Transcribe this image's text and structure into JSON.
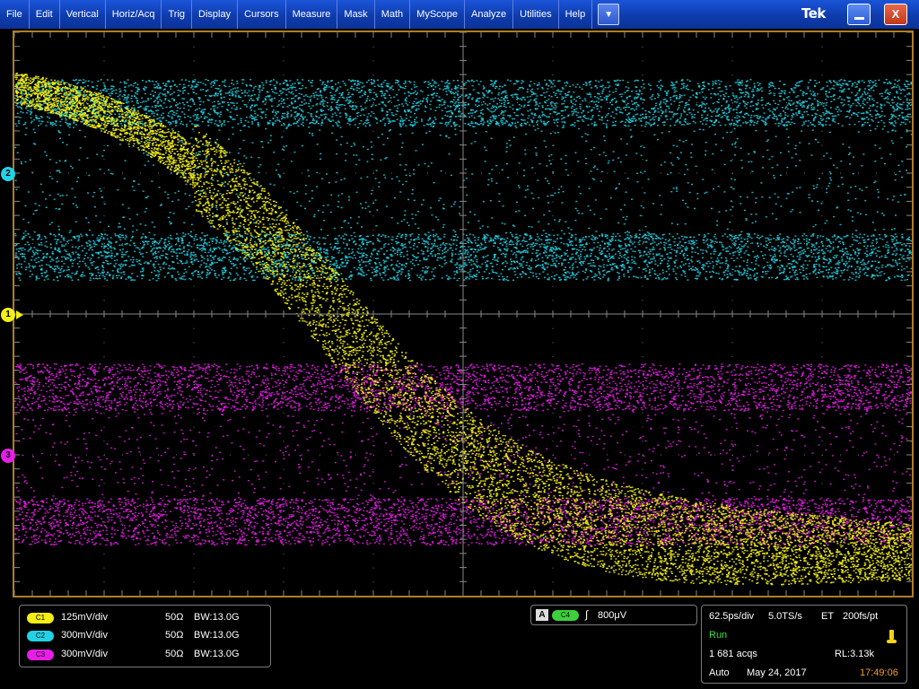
{
  "menu": [
    "File",
    "Edit",
    "Vertical",
    "Horiz/Acq",
    "Trig",
    "Display",
    "Cursors",
    "Measure",
    "Mask",
    "Math",
    "MyScope",
    "Analyze",
    "Utilities",
    "Help"
  ],
  "brand": "Tek",
  "icons": {
    "dropdown": "triangle-down-icon",
    "minimize": "minimize-icon",
    "close": "close-icon",
    "trigger_position": "trigger-position-icon",
    "trigger_level": "trigger-level-arrow-icon",
    "trigger_slope": "rising-edge-icon",
    "trigger_state": "trigger-state-icon"
  },
  "close_label": "X",
  "markers": [
    {
      "label": "2",
      "color": "#22d3e6"
    },
    {
      "label": "1",
      "color": "#f2ee16"
    },
    {
      "label": "3",
      "color": "#e81ee8"
    }
  ],
  "channels": [
    {
      "badge": "C1",
      "scale": "125mV/div",
      "impedance": "50Ω",
      "bandwidth": "BW:13.0G",
      "color": "#f2ee16"
    },
    {
      "badge": "C2",
      "scale": "300mV/div",
      "impedance": "50Ω",
      "bandwidth": "BW:13.0G",
      "color": "#22d3e6"
    },
    {
      "badge": "C3",
      "scale": "300mV/div",
      "impedance": "50Ω",
      "bandwidth": "BW:13.0G",
      "color": "#e81ee8"
    }
  ],
  "trigger": {
    "label": "A",
    "source": "C4",
    "slope": "∫",
    "level": "800μV",
    "source_color": "#3cd13c"
  },
  "acquisition": {
    "timebase": "62.5ps/div",
    "sample_rate": "5.0TS/s",
    "mode": "ET",
    "resolution": "200fs/pt",
    "state": "Run",
    "acqs": "1 681 acqs",
    "record_length": "RL:3.13k",
    "trigger_mode": "Auto",
    "date": "May 24, 2017",
    "time": "17:49:06",
    "state_color": "#3ce03c",
    "time_color": "#f0a020"
  },
  "colors": {
    "ch1": "#f2ee16",
    "ch2": "#22d3e6",
    "ch3": "#e81ee8",
    "graticule_border": "#b07d27"
  }
}
